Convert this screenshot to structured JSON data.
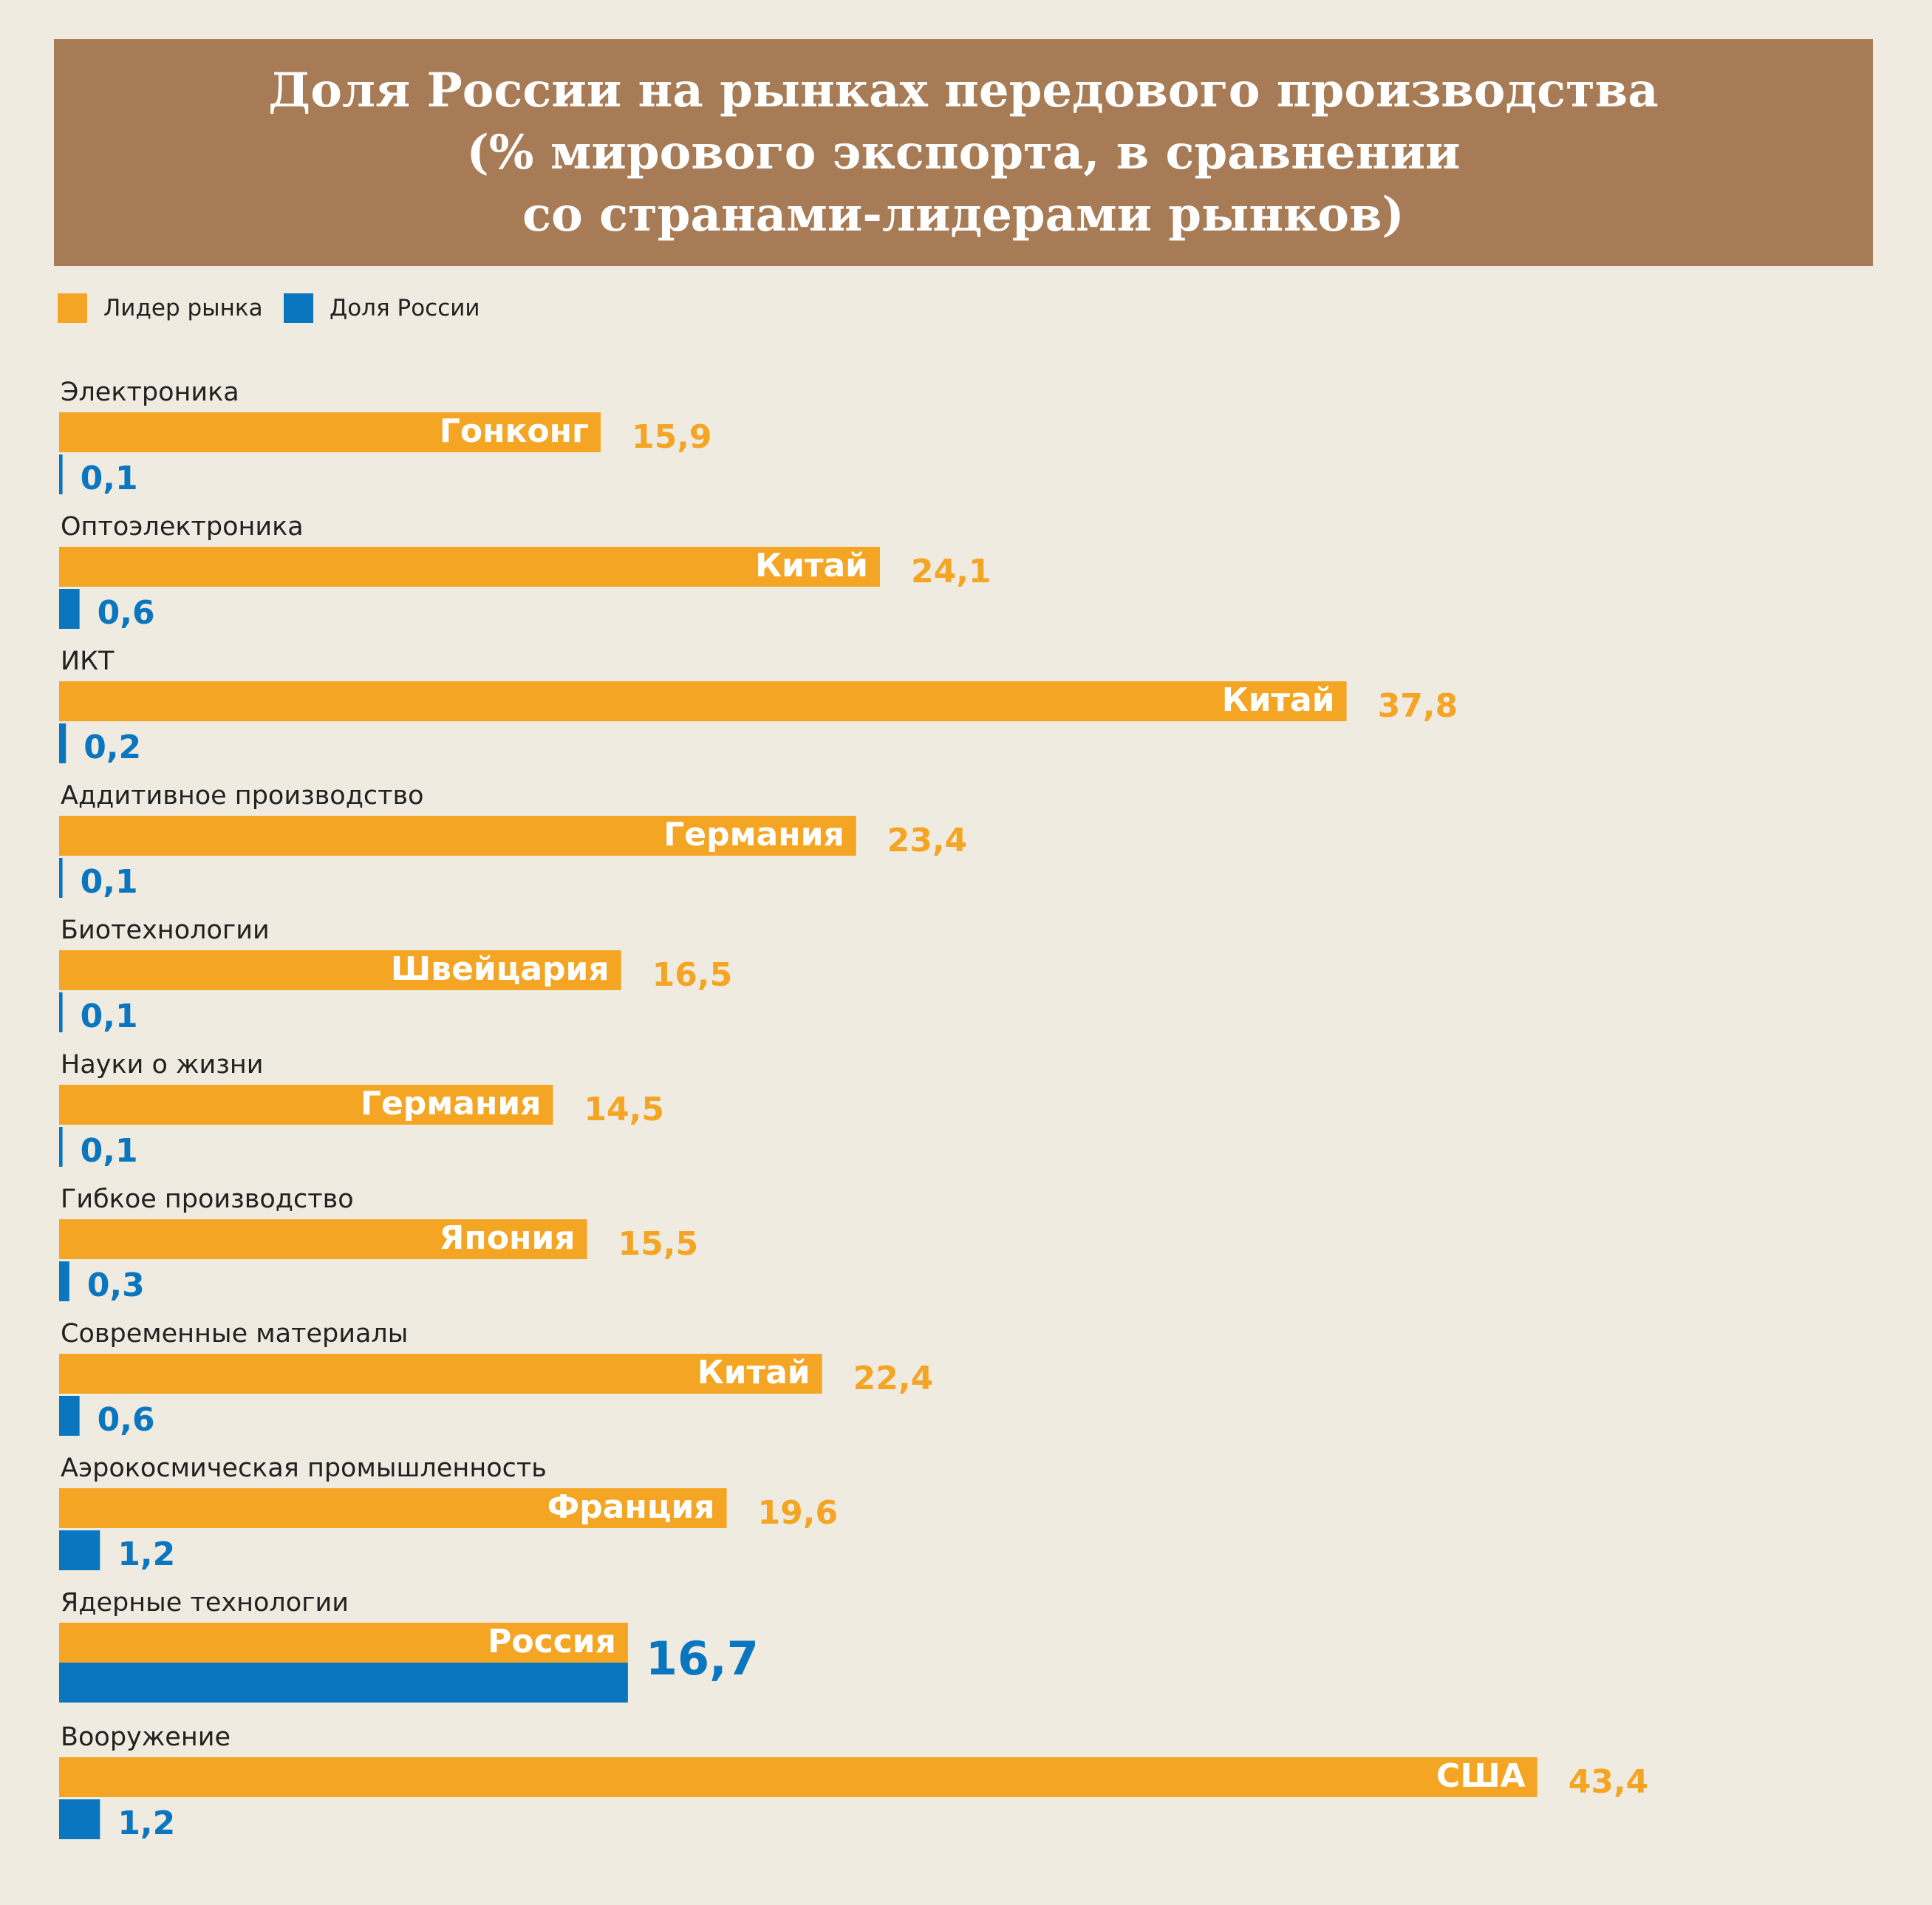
{
  "title": {
    "lines": [
      "Доля России на рынках передового производства",
      "(% мирового экспорта, в сравнении",
      "со странами-лидерами рынков)"
    ]
  },
  "legend": [
    {
      "label": "Лидер рынка",
      "color": "#f4a523"
    },
    {
      "label": "Доля России",
      "color": "#0a76bf"
    }
  ],
  "chart_data": {
    "type": "bar",
    "orientation": "horizontal",
    "title": "Доля России на рынках передового производства (% мирового экспорта, в сравнении со странами-лидерами рынков)",
    "categories": [
      "Электроника",
      "Оптоэлектроника",
      "ИКТ",
      "Аддитивное производство",
      "Биотехнологии",
      "Науки о жизни",
      "Гибкое производство",
      "Современные материалы",
      "Аэрокосмическая промышленность",
      "Ядерные технологии",
      "Вооружение"
    ],
    "leaders": [
      "Гонконг",
      "Китай",
      "Китай",
      "Германия",
      "Швейцария",
      "Германия",
      "Япония",
      "Китай",
      "Франция",
      "Россия",
      "США"
    ],
    "series": [
      {
        "name": "Лидер рынка",
        "color": "#f4a523",
        "values": [
          15.9,
          24.1,
          37.8,
          23.4,
          16.5,
          14.5,
          15.5,
          22.4,
          19.6,
          16.7,
          43.4
        ],
        "labels": [
          "15,9",
          "24,1",
          "37,8",
          "23,4",
          "16,5",
          "14,5",
          "15,5",
          "22,4",
          "19,6",
          "",
          "43,4"
        ]
      },
      {
        "name": "Доля России",
        "color": "#0a76bf",
        "values": [
          0.1,
          0.6,
          0.2,
          0.1,
          0.1,
          0.1,
          0.3,
          0.6,
          1.2,
          16.7,
          1.2
        ],
        "labels": [
          "0,1",
          "0,6",
          "0,2",
          "0,1",
          "0,1",
          "0,1",
          "0,3",
          "0,6",
          "1,2",
          "16,7",
          "1,2"
        ]
      }
    ],
    "grid": false,
    "legend_position": "top-left"
  }
}
